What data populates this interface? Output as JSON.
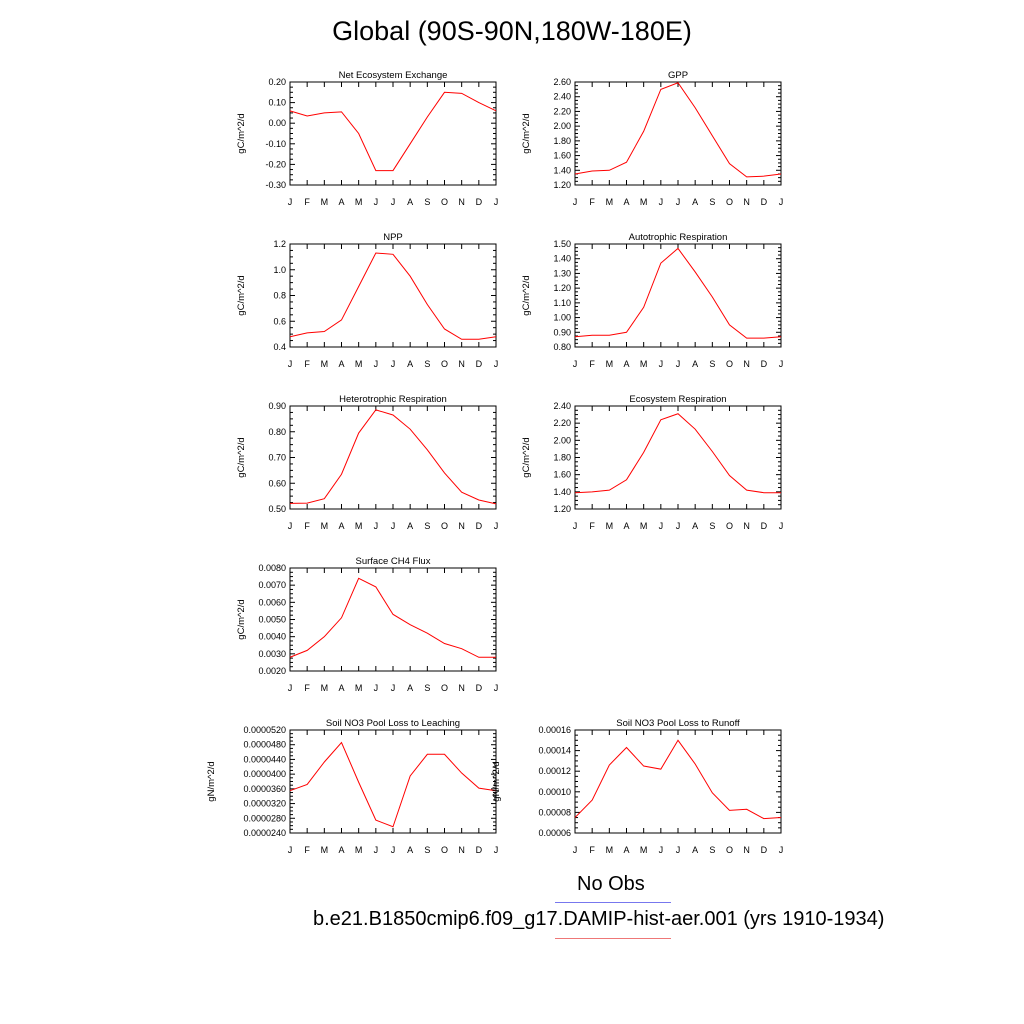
{
  "page": {
    "title": "Global (90S-90N,180W-180E)"
  },
  "legend": [
    {
      "label": "No Obs",
      "color": "#7777ee"
    },
    {
      "label": "b.e21.B1850cmip6.f09_g17.DAMIP-hist-aer.001 (yrs 1910-1934)",
      "color": "#ee7777"
    }
  ],
  "colors": {
    "series": "#ff0000",
    "axis": "#000000"
  },
  "chart_data": [
    {
      "type": "line",
      "title": "Net Ecosystem Exchange",
      "ylabel": "gC/m^2/d",
      "categories": [
        "J",
        "F",
        "M",
        "A",
        "M",
        "J",
        "J",
        "A",
        "S",
        "O",
        "N",
        "D",
        "J"
      ],
      "ylim": [
        -0.3,
        0.2
      ],
      "yticks": [
        "0.20",
        "0.10",
        "0.00",
        "-0.10",
        "-0.20",
        "-0.30"
      ],
      "series": [
        {
          "values": [
            0.06,
            0.035,
            0.05,
            0.055,
            -0.05,
            -0.23,
            -0.23,
            -0.1,
            0.03,
            0.15,
            0.145,
            0.1,
            0.06
          ]
        }
      ]
    },
    {
      "type": "line",
      "title": "GPP",
      "ylabel": "gC/m^2/d",
      "categories": [
        "J",
        "F",
        "M",
        "A",
        "M",
        "J",
        "J",
        "A",
        "S",
        "O",
        "N",
        "D",
        "J"
      ],
      "ylim": [
        1.2,
        2.6
      ],
      "yticks": [
        "2.60",
        "2.40",
        "2.20",
        "2.00",
        "1.80",
        "1.60",
        "1.40",
        "1.20"
      ],
      "series": [
        {
          "values": [
            1.35,
            1.39,
            1.4,
            1.51,
            1.93,
            2.5,
            2.59,
            2.25,
            1.87,
            1.49,
            1.31,
            1.32,
            1.35
          ]
        }
      ]
    },
    {
      "type": "line",
      "title": "NPP",
      "ylabel": "gC/m^2/d",
      "categories": [
        "J",
        "F",
        "M",
        "A",
        "M",
        "J",
        "J",
        "A",
        "S",
        "O",
        "N",
        "D",
        "J"
      ],
      "ylim": [
        0.4,
        1.2
      ],
      "yticks": [
        "1.2",
        "1.0",
        "0.8",
        "0.6",
        "0.4"
      ],
      "series": [
        {
          "values": [
            0.48,
            0.51,
            0.52,
            0.61,
            0.87,
            1.13,
            1.12,
            0.95,
            0.73,
            0.54,
            0.46,
            0.46,
            0.48
          ]
        }
      ]
    },
    {
      "type": "line",
      "title": "Autotrophic Respiration",
      "ylabel": "gC/m^2/d",
      "categories": [
        "J",
        "F",
        "M",
        "A",
        "M",
        "J",
        "J",
        "A",
        "S",
        "O",
        "N",
        "D",
        "J"
      ],
      "ylim": [
        0.8,
        1.5
      ],
      "yticks": [
        "1.50",
        "1.40",
        "1.30",
        "1.20",
        "1.10",
        "1.00",
        "0.90",
        "0.80"
      ],
      "series": [
        {
          "values": [
            0.87,
            0.88,
            0.88,
            0.9,
            1.07,
            1.37,
            1.47,
            1.31,
            1.14,
            0.95,
            0.86,
            0.86,
            0.87
          ]
        }
      ]
    },
    {
      "type": "line",
      "title": "Heterotrophic Respiration",
      "ylabel": "gC/m^2/d",
      "categories": [
        "J",
        "F",
        "M",
        "A",
        "M",
        "J",
        "J",
        "A",
        "S",
        "O",
        "N",
        "D",
        "J"
      ],
      "ylim": [
        0.5,
        0.9
      ],
      "yticks": [
        "0.90",
        "0.80",
        "0.70",
        "0.60",
        "0.50"
      ],
      "series": [
        {
          "values": [
            0.522,
            0.523,
            0.54,
            0.635,
            0.795,
            0.885,
            0.865,
            0.81,
            0.73,
            0.64,
            0.565,
            0.535,
            0.52
          ]
        }
      ]
    },
    {
      "type": "line",
      "title": "Ecosystem Respiration",
      "ylabel": "gC/m^2/d",
      "categories": [
        "J",
        "F",
        "M",
        "A",
        "M",
        "J",
        "J",
        "A",
        "S",
        "O",
        "N",
        "D",
        "J"
      ],
      "ylim": [
        1.2,
        2.4
      ],
      "yticks": [
        "2.40",
        "2.20",
        "2.00",
        "1.80",
        "1.60",
        "1.40",
        "1.20"
      ],
      "series": [
        {
          "values": [
            1.39,
            1.4,
            1.42,
            1.54,
            1.86,
            2.24,
            2.31,
            2.13,
            1.87,
            1.59,
            1.42,
            1.39,
            1.39
          ]
        }
      ]
    },
    {
      "type": "line",
      "title": "Surface CH4 Flux",
      "ylabel": "gC/m^2/d",
      "categories": [
        "J",
        "F",
        "M",
        "A",
        "M",
        "J",
        "J",
        "A",
        "S",
        "O",
        "N",
        "D",
        "J"
      ],
      "ylim": [
        0.002,
        0.008
      ],
      "yticks": [
        "0.0080",
        "0.0070",
        "0.0060",
        "0.0050",
        "0.0040",
        "0.0030",
        "0.0020"
      ],
      "series": [
        {
          "values": [
            0.0028,
            0.0032,
            0.004,
            0.0051,
            0.0074,
            0.0069,
            0.0053,
            0.0047,
            0.0042,
            0.0036,
            0.0033,
            0.0028,
            0.0028
          ]
        }
      ]
    },
    {
      "type": "line",
      "title": "Soil NO3 Pool Loss to Leaching",
      "ylabel": "gN/m^2/d",
      "categories": [
        "J",
        "F",
        "M",
        "A",
        "M",
        "J",
        "J",
        "A",
        "S",
        "O",
        "N",
        "D",
        "J"
      ],
      "ylim": [
        2.4e-05,
        5.2e-05
      ],
      "yticks": [
        "0.0000520",
        "0.0000480",
        "0.0000440",
        "0.0000400",
        "0.0000360",
        "0.0000320",
        "0.0000280",
        "0.0000240"
      ],
      "series": [
        {
          "values": [
            3.55e-05,
            3.72e-05,
            4.33e-05,
            4.86e-05,
            3.78e-05,
            2.75e-05,
            2.57e-05,
            3.95e-05,
            4.54e-05,
            4.54e-05,
            4.03e-05,
            3.62e-05,
            3.55e-05
          ]
        }
      ]
    },
    {
      "type": "line",
      "title": "Soil NO3 Pool Loss to Runoff",
      "ylabel": "gN/m^2/d",
      "categories": [
        "J",
        "F",
        "M",
        "A",
        "M",
        "J",
        "J",
        "A",
        "S",
        "O",
        "N",
        "D",
        "J"
      ],
      "ylim": [
        6e-05,
        0.00016
      ],
      "yticks": [
        "0.00016",
        "0.00014",
        "0.00012",
        "0.00010",
        "0.00008",
        "0.00006"
      ],
      "series": [
        {
          "values": [
            7.5e-05,
            9.2e-05,
            0.000126,
            0.000143,
            0.000125,
            0.000122,
            0.00015,
            0.000127,
            9.9e-05,
            8.2e-05,
            8.3e-05,
            7.4e-05,
            7.5e-05
          ]
        }
      ]
    }
  ]
}
